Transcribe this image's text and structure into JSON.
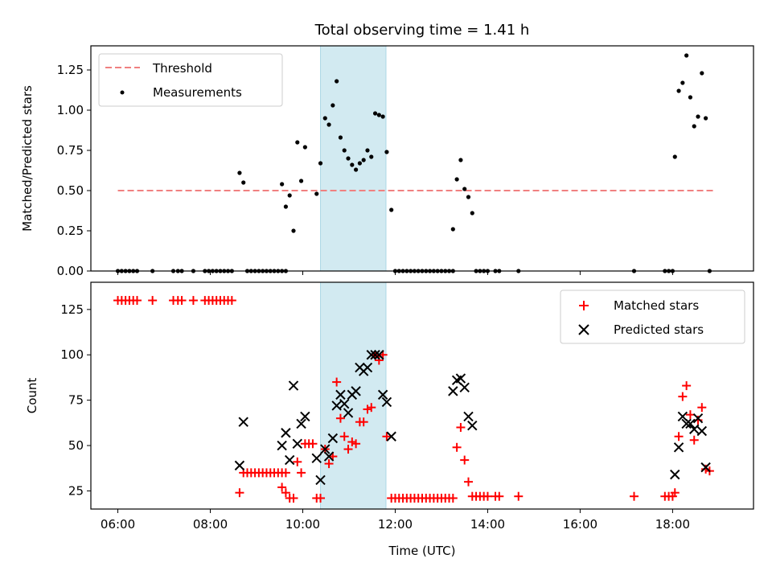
{
  "title": "Total observing time = 1.41 h",
  "colors": {
    "threshold": "#f08080",
    "measurement": "#000000",
    "matched": "#ff0000",
    "predicted": "#000000",
    "shade": "#add8e6"
  },
  "chart_data": [
    {
      "type": "scatter",
      "panel": "top",
      "xlabel": "",
      "ylabel": "Matched/Predicted stars",
      "xlim": [
        "05:25",
        "19:45"
      ],
      "ylim": [
        0,
        1.4
      ],
      "yticks": [
        0.0,
        0.25,
        0.5,
        0.75,
        1.0,
        1.25
      ],
      "ytick_labels": [
        "0.00",
        "0.25",
        "0.50",
        "0.75",
        "1.00",
        "1.25"
      ],
      "legend_loc": "upper-left",
      "shaded_span": [
        "10:23",
        "11:48"
      ],
      "threshold": {
        "name": "Threshold",
        "y": 0.5,
        "x": [
          "06:00",
          "18:53"
        ],
        "style": "dashed"
      },
      "series": [
        {
          "name": "Measurements",
          "marker": "dot",
          "points": [
            [
              "06:00",
              0
            ],
            [
              "06:05",
              0
            ],
            [
              "06:10",
              0
            ],
            [
              "06:15",
              0
            ],
            [
              "06:20",
              0
            ],
            [
              "06:25",
              0
            ],
            [
              "06:45",
              0
            ],
            [
              "07:12",
              0
            ],
            [
              "07:18",
              0
            ],
            [
              "07:23",
              0
            ],
            [
              "07:38",
              0
            ],
            [
              "07:53",
              0
            ],
            [
              "07:58",
              0
            ],
            [
              "08:03",
              0
            ],
            [
              "08:08",
              0
            ],
            [
              "08:13",
              0
            ],
            [
              "08:18",
              0
            ],
            [
              "08:23",
              0
            ],
            [
              "08:28",
              0
            ],
            [
              "08:38",
              0.61
            ],
            [
              "08:43",
              0.55
            ],
            [
              "08:48",
              0
            ],
            [
              "08:53",
              0
            ],
            [
              "08:58",
              0
            ],
            [
              "09:03",
              0
            ],
            [
              "09:08",
              0
            ],
            [
              "09:13",
              0
            ],
            [
              "09:18",
              0
            ],
            [
              "09:23",
              0
            ],
            [
              "09:28",
              0
            ],
            [
              "09:33",
              0
            ],
            [
              "09:38",
              0
            ],
            [
              "09:33",
              0.54
            ],
            [
              "09:38",
              0.4
            ],
            [
              "09:43",
              0.47
            ],
            [
              "09:48",
              0.25
            ],
            [
              "09:53",
              0.8
            ],
            [
              "09:58",
              0.56
            ],
            [
              "10:03",
              0.77
            ],
            [
              "10:18",
              0.48
            ],
            [
              "10:23",
              0.67
            ],
            [
              "10:29",
              0.95
            ],
            [
              "10:34",
              0.91
            ],
            [
              "10:39",
              1.03
            ],
            [
              "10:44",
              1.18
            ],
            [
              "10:49",
              0.83
            ],
            [
              "10:54",
              0.75
            ],
            [
              "10:59",
              0.7
            ],
            [
              "11:04",
              0.66
            ],
            [
              "11:09",
              0.63
            ],
            [
              "11:14",
              0.67
            ],
            [
              "11:19",
              0.69
            ],
            [
              "11:24",
              0.75
            ],
            [
              "11:29",
              0.71
            ],
            [
              "11:34",
              0.98
            ],
            [
              "11:39",
              0.97
            ],
            [
              "11:44",
              0.96
            ],
            [
              "11:49",
              0.74
            ],
            [
              "11:55",
              0.38
            ],
            [
              "12:00",
              0
            ],
            [
              "12:05",
              0
            ],
            [
              "12:10",
              0
            ],
            [
              "12:15",
              0
            ],
            [
              "12:20",
              0
            ],
            [
              "12:25",
              0
            ],
            [
              "12:30",
              0
            ],
            [
              "12:35",
              0
            ],
            [
              "12:40",
              0
            ],
            [
              "12:45",
              0
            ],
            [
              "12:50",
              0
            ],
            [
              "12:55",
              0
            ],
            [
              "13:00",
              0
            ],
            [
              "13:05",
              0
            ],
            [
              "13:10",
              0
            ],
            [
              "13:15",
              0
            ],
            [
              "13:15",
              0.26
            ],
            [
              "13:20",
              0.57
            ],
            [
              "13:25",
              0.69
            ],
            [
              "13:30",
              0.51
            ],
            [
              "13:35",
              0.46
            ],
            [
              "13:40",
              0.36
            ],
            [
              "13:45",
              0
            ],
            [
              "13:50",
              0
            ],
            [
              "13:55",
              0
            ],
            [
              "14:00",
              0
            ],
            [
              "14:10",
              0
            ],
            [
              "14:15",
              0
            ],
            [
              "14:40",
              0
            ],
            [
              "17:10",
              0
            ],
            [
              "17:50",
              0
            ],
            [
              "17:55",
              0
            ],
            [
              "18:00",
              0
            ],
            [
              "18:03",
              0.71
            ],
            [
              "18:08",
              1.12
            ],
            [
              "18:13",
              1.17
            ],
            [
              "18:18",
              1.34
            ],
            [
              "18:23",
              1.08
            ],
            [
              "18:28",
              0.9
            ],
            [
              "18:33",
              0.96
            ],
            [
              "18:38",
              1.23
            ],
            [
              "18:43",
              0.95
            ],
            [
              "18:48",
              0
            ]
          ]
        }
      ]
    },
    {
      "type": "scatter",
      "panel": "bottom",
      "xlabel": "Time (UTC)",
      "ylabel": "Count",
      "xlim": [
        "05:25",
        "19:45"
      ],
      "ylim": [
        15,
        140
      ],
      "xticks": [
        "06:00",
        "08:00",
        "10:00",
        "12:00",
        "14:00",
        "16:00",
        "18:00"
      ],
      "yticks": [
        25,
        50,
        75,
        100,
        125
      ],
      "ytick_labels": [
        "25",
        "50",
        "75",
        "100",
        "125"
      ],
      "legend_loc": "upper-right",
      "shaded_span": [
        "10:23",
        "11:48"
      ],
      "series": [
        {
          "name": "Matched stars",
          "marker": "plus",
          "points": [
            [
              "06:00",
              130
            ],
            [
              "06:05",
              130
            ],
            [
              "06:10",
              130
            ],
            [
              "06:15",
              130
            ],
            [
              "06:20",
              130
            ],
            [
              "06:25",
              130
            ],
            [
              "06:45",
              130
            ],
            [
              "07:12",
              130
            ],
            [
              "07:18",
              130
            ],
            [
              "07:23",
              130
            ],
            [
              "07:38",
              130
            ],
            [
              "07:53",
              130
            ],
            [
              "07:58",
              130
            ],
            [
              "08:03",
              130
            ],
            [
              "08:08",
              130
            ],
            [
              "08:13",
              130
            ],
            [
              "08:18",
              130
            ],
            [
              "08:23",
              130
            ],
            [
              "08:28",
              130
            ],
            [
              "08:38",
              24
            ],
            [
              "08:43",
              35
            ],
            [
              "08:48",
              35
            ],
            [
              "08:53",
              35
            ],
            [
              "08:58",
              35
            ],
            [
              "09:03",
              35
            ],
            [
              "09:08",
              35
            ],
            [
              "09:13",
              35
            ],
            [
              "09:18",
              35
            ],
            [
              "09:23",
              35
            ],
            [
              "09:28",
              35
            ],
            [
              "09:33",
              35
            ],
            [
              "09:38",
              35
            ],
            [
              "09:33",
              27
            ],
            [
              "09:38",
              24
            ],
            [
              "09:43",
              21
            ],
            [
              "09:48",
              21
            ],
            [
              "09:53",
              41
            ],
            [
              "09:58",
              35
            ],
            [
              "10:03",
              51
            ],
            [
              "10:08",
              51
            ],
            [
              "10:13",
              51
            ],
            [
              "10:18",
              21
            ],
            [
              "10:23",
              21
            ],
            [
              "10:29",
              48
            ],
            [
              "10:34",
              40
            ],
            [
              "10:39",
              44
            ],
            [
              "10:44",
              85
            ],
            [
              "10:49",
              65
            ],
            [
              "10:54",
              55
            ],
            [
              "10:59",
              48
            ],
            [
              "11:04",
              52
            ],
            [
              "11:09",
              51
            ],
            [
              "11:14",
              63
            ],
            [
              "11:19",
              63
            ],
            [
              "11:24",
              70
            ],
            [
              "11:29",
              71
            ],
            [
              "11:34",
              100
            ],
            [
              "11:39",
              97
            ],
            [
              "11:44",
              100
            ],
            [
              "11:49",
              55
            ],
            [
              "11:55",
              21
            ],
            [
              "12:00",
              21
            ],
            [
              "12:05",
              21
            ],
            [
              "12:10",
              21
            ],
            [
              "12:15",
              21
            ],
            [
              "12:20",
              21
            ],
            [
              "12:25",
              21
            ],
            [
              "12:30",
              21
            ],
            [
              "12:35",
              21
            ],
            [
              "12:40",
              21
            ],
            [
              "12:45",
              21
            ],
            [
              "12:50",
              21
            ],
            [
              "12:55",
              21
            ],
            [
              "13:00",
              21
            ],
            [
              "13:05",
              21
            ],
            [
              "13:10",
              21
            ],
            [
              "13:15",
              21
            ],
            [
              "13:20",
              49
            ],
            [
              "13:25",
              60
            ],
            [
              "13:30",
              42
            ],
            [
              "13:35",
              30
            ],
            [
              "13:40",
              22
            ],
            [
              "13:45",
              22
            ],
            [
              "13:50",
              22
            ],
            [
              "13:55",
              22
            ],
            [
              "14:00",
              22
            ],
            [
              "14:10",
              22
            ],
            [
              "14:15",
              22
            ],
            [
              "14:40",
              22
            ],
            [
              "17:10",
              22
            ],
            [
              "17:50",
              22
            ],
            [
              "17:55",
              22
            ],
            [
              "18:00",
              22
            ],
            [
              "18:03",
              24
            ],
            [
              "18:08",
              55
            ],
            [
              "18:13",
              77
            ],
            [
              "18:18",
              83
            ],
            [
              "18:23",
              67
            ],
            [
              "18:28",
              53
            ],
            [
              "18:33",
              64
            ],
            [
              "18:38",
              71
            ],
            [
              "18:43",
              37
            ],
            [
              "18:48",
              36
            ]
          ]
        },
        {
          "name": "Predicted stars",
          "marker": "x",
          "points": [
            [
              "08:38",
              39
            ],
            [
              "08:43",
              63
            ],
            [
              "09:33",
              50
            ],
            [
              "09:38",
              57
            ],
            [
              "09:43",
              42
            ],
            [
              "09:48",
              83
            ],
            [
              "09:53",
              51
            ],
            [
              "09:58",
              62
            ],
            [
              "10:03",
              66
            ],
            [
              "10:18",
              43
            ],
            [
              "10:23",
              31
            ],
            [
              "10:29",
              48
            ],
            [
              "10:34",
              44
            ],
            [
              "10:39",
              54
            ],
            [
              "10:44",
              72
            ],
            [
              "10:49",
              78
            ],
            [
              "10:54",
              73
            ],
            [
              "10:59",
              68
            ],
            [
              "11:04",
              78
            ],
            [
              "11:09",
              80
            ],
            [
              "11:14",
              93
            ],
            [
              "11:19",
              91
            ],
            [
              "11:24",
              93
            ],
            [
              "11:29",
              100
            ],
            [
              "11:34",
              100
            ],
            [
              "11:39",
              100
            ],
            [
              "11:44",
              78
            ],
            [
              "11:49",
              74
            ],
            [
              "11:55",
              55
            ],
            [
              "13:15",
              80
            ],
            [
              "13:20",
              86
            ],
            [
              "13:25",
              87
            ],
            [
              "13:30",
              82
            ],
            [
              "13:35",
              66
            ],
            [
              "13:40",
              61
            ],
            [
              "18:03",
              34
            ],
            [
              "18:08",
              49
            ],
            [
              "18:13",
              66
            ],
            [
              "18:18",
              62
            ],
            [
              "18:23",
              62
            ],
            [
              "18:28",
              59
            ],
            [
              "18:33",
              65
            ],
            [
              "18:38",
              58
            ],
            [
              "18:43",
              38
            ]
          ]
        }
      ]
    }
  ]
}
